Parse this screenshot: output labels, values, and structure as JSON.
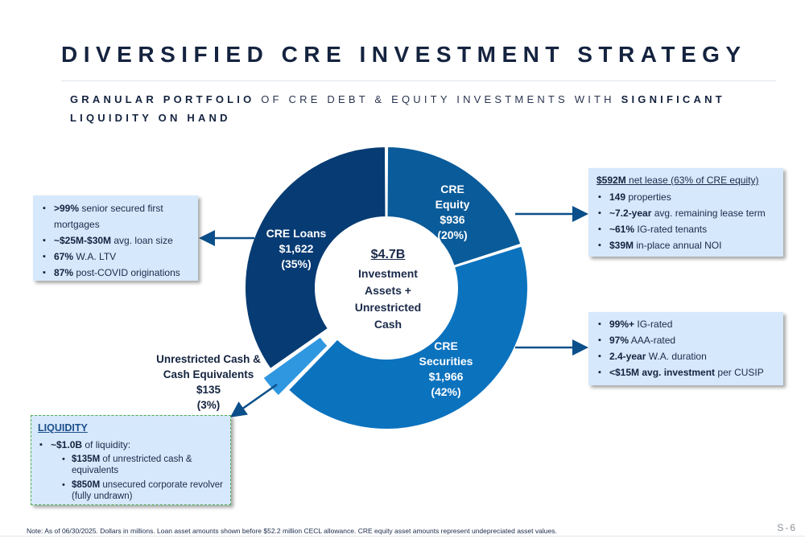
{
  "title": "DIVERSIFIED CRE INVESTMENT STRATEGY",
  "subtitle": {
    "p1": "GRANULAR PORTFOLIO",
    "p2": " OF CRE DEBT & EQUITY INVESTMENTS WITH ",
    "p3": "SIGNIFICANT LIQUIDITY ON HAND"
  },
  "chart_data": {
    "type": "pie",
    "variant": "donut",
    "center_label": {
      "amount": "$4.7B",
      "text": "Investment Assets + Unrestricted Cash"
    },
    "slices": [
      {
        "name": "CRE Equity",
        "value": 936,
        "pct_label": "(20%)",
        "value_label": "$936",
        "color": "#0a5b99"
      },
      {
        "name": "CRE Securities",
        "value": 1966,
        "pct_label": "(42%)",
        "value_label": "$1,966",
        "color": "#0b72be"
      },
      {
        "name": "Unrestricted Cash & Cash Equivalents",
        "value": 135,
        "pct_label": "(3%)",
        "value_label": "$135",
        "color": "#2f97e0"
      },
      {
        "name": "CRE Loans",
        "value": 1622,
        "pct_label": "(35%)",
        "value_label": "$1,622",
        "color": "#073b73"
      }
    ]
  },
  "labels": {
    "equity": [
      "CRE",
      "Equity",
      "$936",
      "(20%)"
    ],
    "securities": [
      "CRE",
      "Securities",
      "$1,966",
      "(42%)"
    ],
    "loans": [
      "CRE Loans",
      "$1,622",
      "(35%)"
    ],
    "cash": [
      "Unrestricted Cash &",
      "Cash Equivalents",
      "$135",
      "(3%)"
    ]
  },
  "loans_box": {
    "items": [
      {
        "b": ">99%",
        "t": " senior secured first mortgages"
      },
      {
        "b": "~$25M-$30M",
        "t": " avg. loan size"
      },
      {
        "b": "67%",
        "t": " W.A. LTV"
      },
      {
        "b": "87%",
        "t": " post-COVID originations"
      }
    ]
  },
  "equity_box": {
    "header_b": "$592M",
    "header_t": " net lease (63% of CRE equity)",
    "items": [
      {
        "b": "149",
        "t": " properties"
      },
      {
        "b": "~7.2-year",
        "t": " avg. remaining lease term"
      },
      {
        "b": "~61%",
        "t": " IG-rated tenants"
      },
      {
        "b": "$39M",
        "t": " in-place annual NOI"
      }
    ]
  },
  "securities_box": {
    "items": [
      {
        "b": "99%+",
        "t": " IG-rated"
      },
      {
        "b": "97%",
        "t": " AAA-rated"
      },
      {
        "b": "2.4-year",
        "t": " W.A. duration"
      },
      {
        "b": "<$15M avg. investment",
        "t": " per CUSIP"
      }
    ]
  },
  "liquidity_box": {
    "header": "LIQUIDITY",
    "main_b": "~$1.0B",
    "main_t": " of liquidity:",
    "sub": [
      {
        "b": "$135M",
        "t": " of unrestricted cash & equivalents"
      },
      {
        "b": "$850M",
        "t": " unsecured corporate revolver (fully undrawn)"
      }
    ]
  },
  "footnote": "Note: As of 06/30/2025. Dollars in millions. Loan asset amounts shown before $52.2 million CECL allowance. CRE equity asset amounts represent undepreciated asset values.",
  "page_number": "S-6",
  "colors": {
    "navy": "#14233f",
    "light_box": "#d6e8fb",
    "arrow": "#0b4f8a",
    "liquidity_border": "#4caf50"
  }
}
